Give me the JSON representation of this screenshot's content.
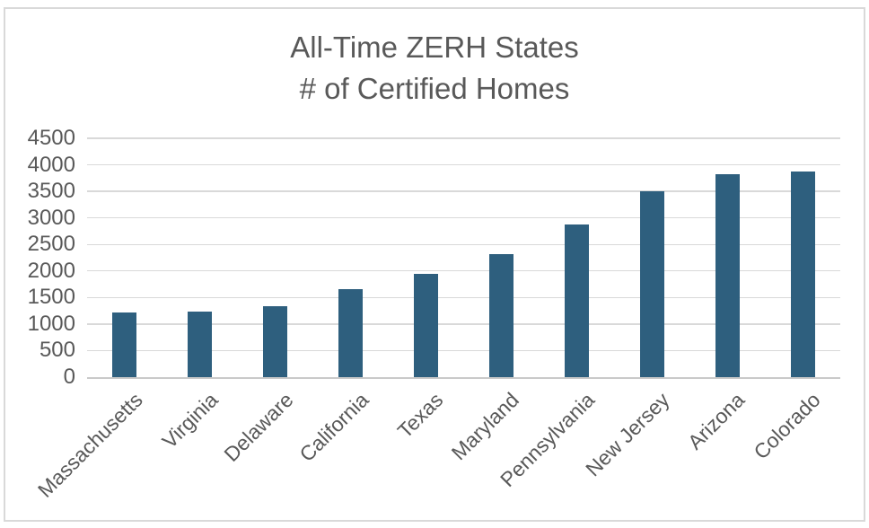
{
  "chart_data": {
    "type": "bar",
    "title": "All-Time ZERH States",
    "subtitle": "# of Certified Homes",
    "categories": [
      "Massachusetts",
      "Virginia",
      "Delaware",
      "California",
      "Texas",
      "Maryland",
      "Pennsylvania",
      "New Jersey",
      "Arizona",
      "Colorado"
    ],
    "values": [
      1220,
      1230,
      1330,
      1650,
      1950,
      2320,
      2870,
      3510,
      3830,
      3870
    ],
    "xlabel": "",
    "ylabel": "",
    "ylim": [
      0,
      4500
    ],
    "yticks": [
      0,
      500,
      1000,
      1500,
      2000,
      2500,
      3000,
      3500,
      4000,
      4500
    ],
    "grid": true,
    "legend": false,
    "x_label_rotation_deg": -45,
    "colors": {
      "bar": "#2E5F7E",
      "text": "#595959",
      "gridline": "#D9D9D9",
      "axis_line": "#C9C9C9",
      "frame_border": "#D9D9D9",
      "background": "#FFFFFF"
    }
  }
}
